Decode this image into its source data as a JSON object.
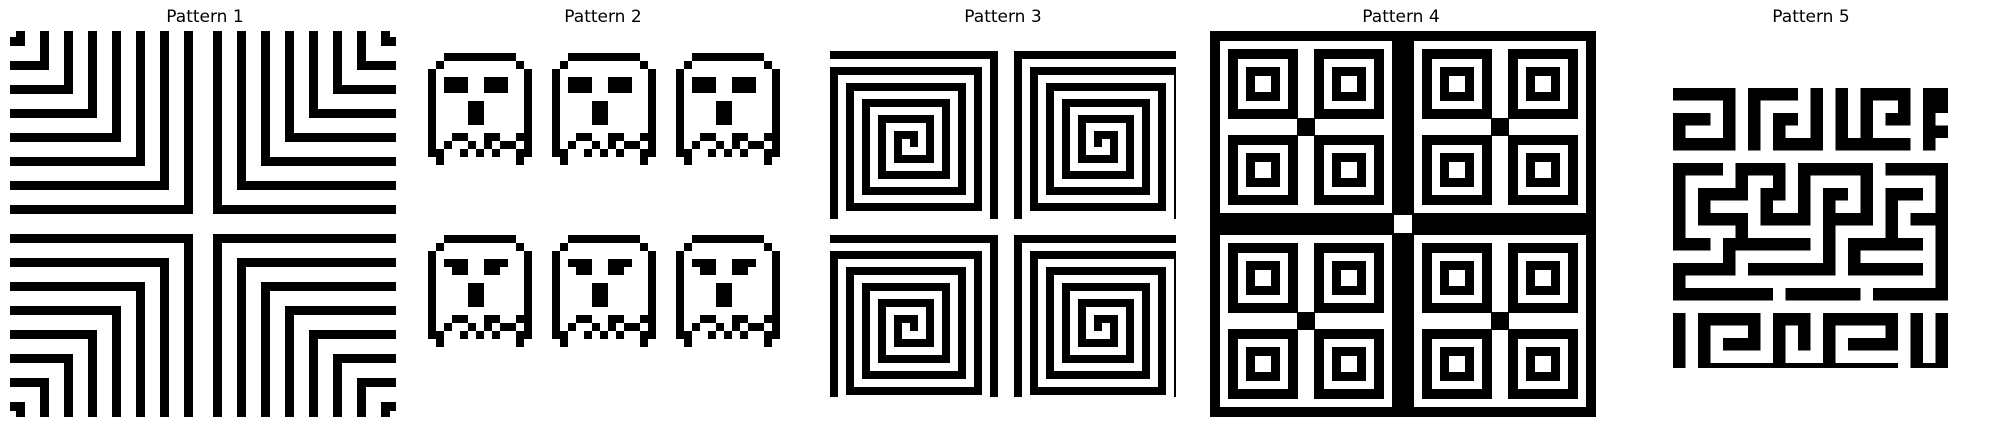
{
  "colors": {
    "ink": "#000000",
    "paper": "#ffffff"
  },
  "panels": [
    {
      "title": "Pattern 1",
      "motif": "nested-corner-stripes"
    },
    {
      "title": "Pattern 2",
      "motif": "pixel-ghost-sprites"
    },
    {
      "title": "Pattern 3",
      "motif": "square-spirals"
    },
    {
      "title": "Pattern 4",
      "motif": "nested-square-tiles"
    },
    {
      "title": "Pattern 5",
      "motif": "labyrinth-glyph-maze"
    }
  ]
}
